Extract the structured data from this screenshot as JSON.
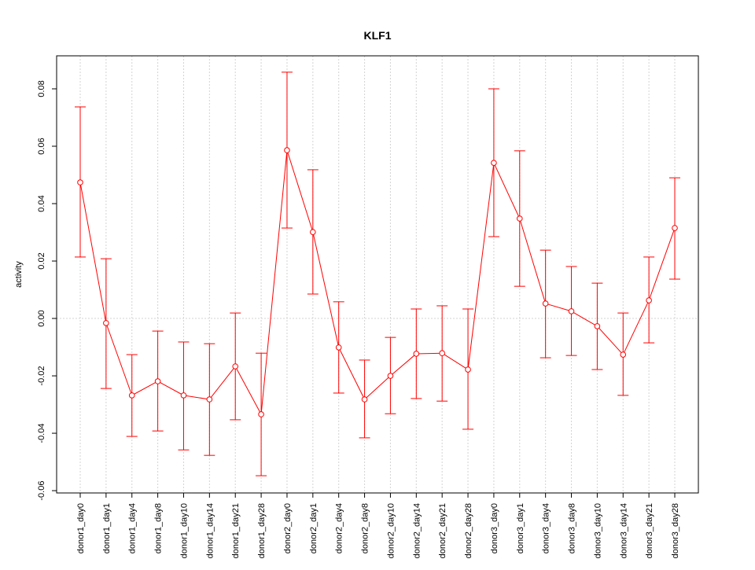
{
  "chart_data": {
    "type": "line",
    "title": "KLF1",
    "xlabel": "",
    "ylabel": "activity",
    "ylim": [
      -0.0608,
      0.0915
    ],
    "yticks": [
      -0.06,
      -0.04,
      -0.02,
      0.0,
      0.02,
      0.04,
      0.06,
      0.08
    ],
    "ytick_labels": [
      "-0.06",
      "-0.04",
      "-0.02",
      "0.00",
      "0.02",
      "0.04",
      "0.06",
      "0.08"
    ],
    "grid": true,
    "color": "#ff0000",
    "categories": [
      "donor1_day0",
      "donor1_day1",
      "donor1_day4",
      "donor1_day8",
      "donor1_day10",
      "donor1_day14",
      "donor1_day21",
      "donor1_day28",
      "donor2_day0",
      "donor2_day1",
      "donor2_day4",
      "donor2_day8",
      "donor2_day10",
      "donor2_day14",
      "donor2_day21",
      "donor2_day28",
      "donor3_day0",
      "donor3_day1",
      "donor3_day4",
      "donor3_day8",
      "donor3_day10",
      "donor3_day14",
      "donor3_day21",
      "donor3_day28"
    ],
    "values": [
      0.0474,
      -0.0016,
      -0.0268,
      -0.0219,
      -0.0268,
      -0.0282,
      -0.0167,
      -0.0334,
      0.0586,
      0.0301,
      -0.0101,
      -0.0282,
      -0.02,
      -0.0123,
      -0.0121,
      -0.0178,
      0.0542,
      0.0348,
      0.0052,
      0.0025,
      -0.0027,
      -0.0126,
      0.0063,
      0.0315
    ],
    "upper": [
      0.0737,
      0.0208,
      -0.0126,
      -0.0044,
      -0.0082,
      -0.0088,
      0.0019,
      -0.0121,
      0.0858,
      0.0518,
      0.0058,
      -0.0145,
      -0.0066,
      0.0033,
      0.0044,
      0.0033,
      0.08,
      0.0584,
      0.0238,
      0.0181,
      0.0123,
      0.0019,
      0.0214,
      0.049
    ],
    "lower": [
      0.0214,
      -0.0244,
      -0.0411,
      -0.0392,
      -0.0458,
      -0.0477,
      -0.0353,
      -0.0548,
      0.0315,
      0.0085,
      -0.026,
      -0.0416,
      -0.0332,
      -0.0279,
      -0.0288,
      -0.0386,
      0.0285,
      0.0112,
      -0.0137,
      -0.0129,
      -0.0178,
      -0.0268,
      -0.0085,
      0.0137
    ]
  }
}
